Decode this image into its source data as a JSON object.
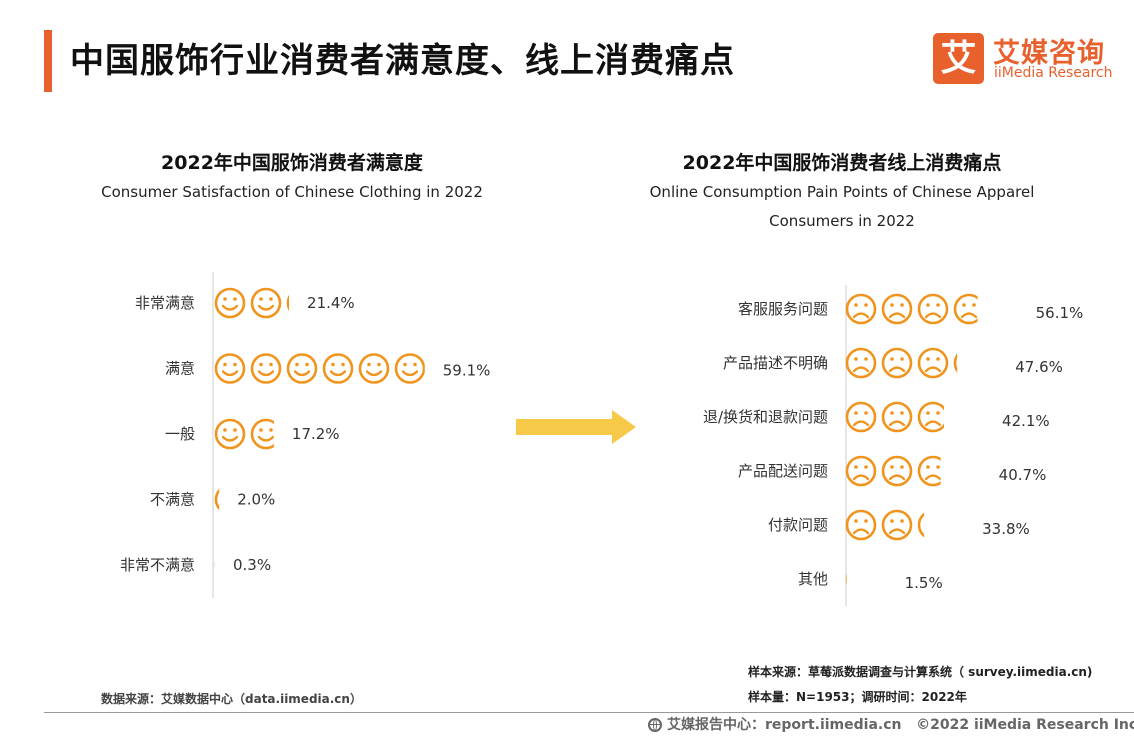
{
  "header": {
    "title": "中国服饰行业消费者满意度、线上消费痛点",
    "logo_mark": "艾",
    "logo_cn": "艾媒咨询",
    "logo_en": "iiMedia Research"
  },
  "colors": {
    "accent": "#e8602c",
    "icon": "#f0941e",
    "arrow": "#f7c948",
    "axis": "#cccccc"
  },
  "icons": {
    "satisfied": "smiley-face-icon",
    "pain": "frowny-face-icon"
  },
  "chart_data": [
    {
      "type": "bar",
      "title": "2022年中国服饰消费者满意度",
      "subtitle": [
        "Consumer Satisfaction of Chinese Clothing in 2022"
      ],
      "categories": [
        "非常满意",
        "满意",
        "一般",
        "不满意",
        "非常不满意"
      ],
      "values": [
        21.4,
        59.1,
        17.2,
        2.0,
        0.3
      ],
      "value_labels": [
        "21.4%",
        "59.1%",
        "17.2%",
        "2.0%",
        "0.3%"
      ],
      "unit": "%",
      "orientation": "horizontal",
      "mark": "smiley",
      "percent_per_icon": 10
    },
    {
      "type": "bar",
      "title": "2022年中国服饰消费者线上消费痛点",
      "subtitle": [
        "Online Consumption Pain Points of Chinese Apparel",
        "Consumers in 2022"
      ],
      "categories": [
        "客服服务问题",
        "产品描述不明确",
        "退/换货和退款问题",
        "产品配送问题",
        "付款问题",
        "其他"
      ],
      "values": [
        56.1,
        47.6,
        42.1,
        40.7,
        33.8,
        1.5
      ],
      "value_labels": [
        "56.1%",
        "47.6%",
        "42.1%",
        "40.7%",
        "33.8%",
        "1.5%"
      ],
      "unit": "%",
      "orientation": "horizontal",
      "mark": "frowny",
      "percent_per_icon": 15
    }
  ],
  "footer": {
    "data_source": "数据来源：艾媒数据中心（data.iimedia.cn）",
    "sample_source": "样本来源：草莓派数据调查与计算系统（ survey.iimedia.cn)",
    "sample_size": "样本量：N=1953；调研时间：2022年",
    "report_center": "艾媒报告中心：report.iimedia.cn",
    "copyright": "©2022  iiMedia Research  Inc"
  }
}
